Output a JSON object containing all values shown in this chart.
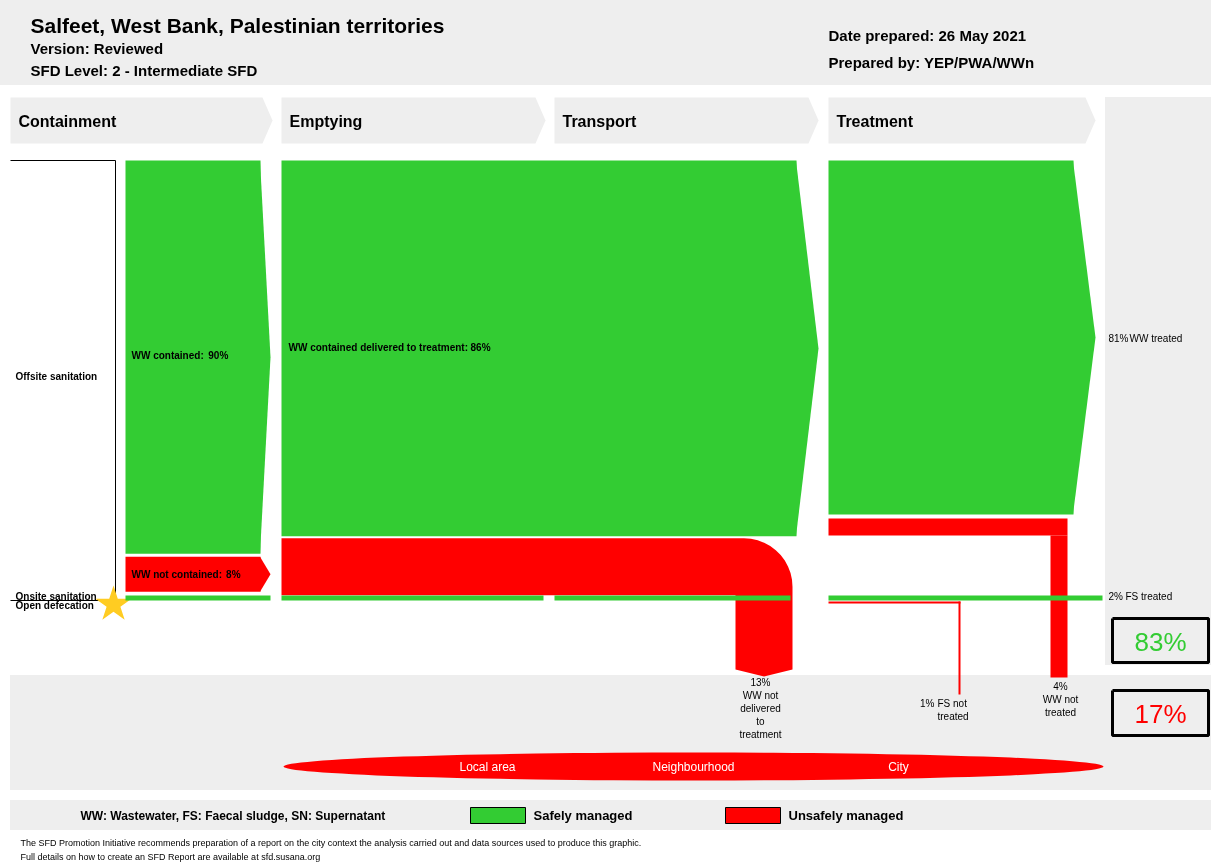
{
  "chart_data": {
    "type": "other",
    "title": "Salfeet, West Bank, Palestinian territories",
    "subtitle": "Version: Reviewed",
    "annotations": [
      "SFD Level: 2 - Intermediate SFD",
      "Date prepared: 26 May 2021",
      "Prepared by: YEP/PWA/WWn",
      "Offsite sanitation",
      "Onsite sanitation",
      "Open defecation",
      "Local area",
      "Neighbourhood",
      "City",
      "WW: Wastewater, FS: Faecal sludge, SN: Supernatant",
      "The SFD Promotion Initiative recommends preparation of a report on the city context the analysis carried out and data sources used to produce this graphic.",
      "Full details on how to create an SFD Report are available at sfd.susana.org",
      "Containment",
      "Emptying",
      "Transport",
      "Treatment",
      "83%",
      "17%",
      "WW not delivered to treatment",
      "WW treated",
      "FS treated",
      "FS not treated",
      "WW not treated",
      "13%",
      "81%",
      "2%",
      "1%",
      "4%"
    ],
    "series": [
      {
        "name": "WW contained:",
        "color": "#33cc33",
        "values": [
          90
        ],
        "value_labels": [
          "90%"
        ]
      },
      {
        "name": "WW not contained:",
        "color": "#ff0000",
        "values": [
          8
        ],
        "value_labels": [
          "8%"
        ]
      },
      {
        "name": "WW contained delivered to treatment:",
        "color": "#33cc33",
        "values": [
          86
        ],
        "value_labels": [
          "86%"
        ]
      },
      {
        "name": "Safely managed",
        "color": "#33cc33"
      },
      {
        "name": "Unsafely managed",
        "color": "#ff0000"
      }
    ],
    "legend": "bottom"
  }
}
